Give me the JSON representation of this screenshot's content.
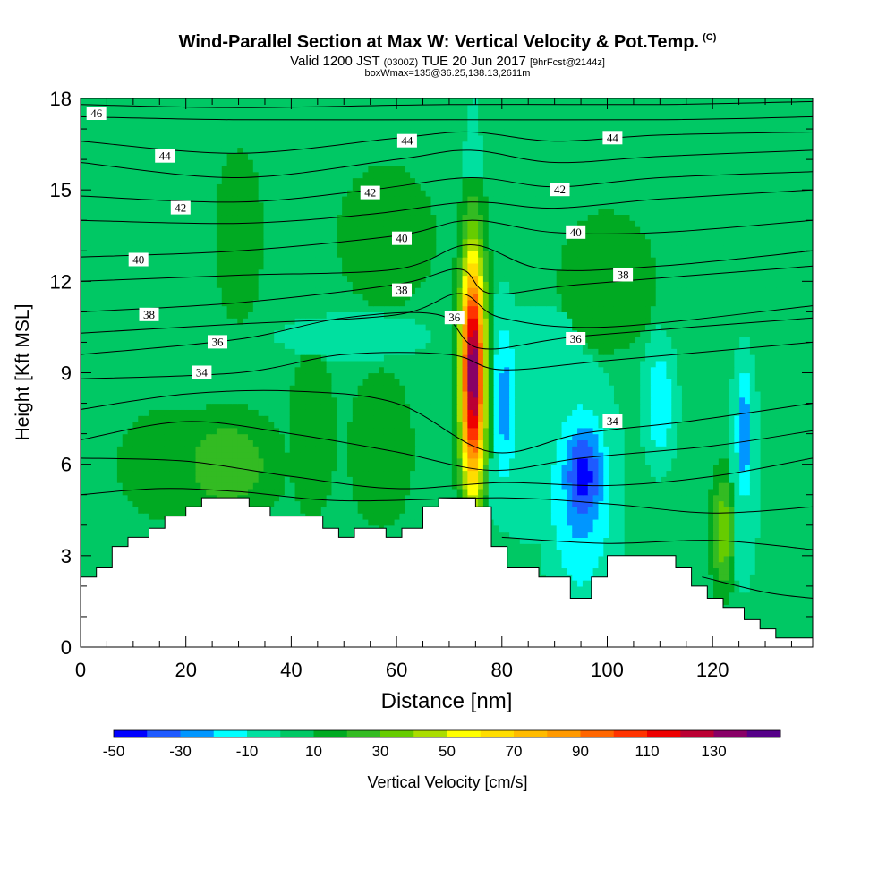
{
  "header": {
    "title": "Wind-Parallel Section at Max W: Vertical Velocity & Pot.Temp.",
    "copyright": "(C)",
    "valid_prefix": "Valid 1200 JST",
    "valid_z": "(0300Z)",
    "valid_date": "TUE 20 Jun 2017",
    "forecast_note": "[9hrFcst@2144z]",
    "box_info": "boxWmax=135@36.25,138.13,2611m"
  },
  "chart_data": {
    "type": "heatmap",
    "xlabel": "Distance [nm]",
    "ylabel": "Height [Kft MSL]",
    "xlim": [
      0,
      139
    ],
    "ylim": [
      0,
      18
    ],
    "x_ticks": [
      0,
      20,
      40,
      60,
      80,
      100,
      120
    ],
    "y_ticks": [
      0,
      3,
      6,
      9,
      12,
      15,
      18
    ],
    "grid": false,
    "colorbar": {
      "label": "Vertical Velocity [cm/s]",
      "levels": [
        -50,
        -40,
        -30,
        -20,
        -10,
        0,
        10,
        20,
        30,
        40,
        50,
        60,
        70,
        80,
        90,
        100,
        110,
        120,
        130,
        140
      ],
      "tick_labels": [
        "-50",
        "-30",
        "-10",
        "10",
        "30",
        "50",
        "70",
        "90",
        "110",
        "130"
      ],
      "tick_values": [
        -50,
        -30,
        -10,
        10,
        30,
        50,
        70,
        90,
        110,
        130
      ],
      "colors": [
        "#0000ff",
        "#1e5aff",
        "#0096ff",
        "#00ffff",
        "#00e0a0",
        "#00c864",
        "#00aa22",
        "#33bb22",
        "#66cc00",
        "#aadd00",
        "#ffff00",
        "#ffdd00",
        "#ffbb00",
        "#ff9900",
        "#ff6600",
        "#ff3300",
        "#ee0000",
        "#bb0033",
        "#880066",
        "#550088"
      ]
    },
    "background_w": 5,
    "velocity_features": [
      {
        "x": 74.5,
        "y": 9.0,
        "rx": 2.3,
        "ry": 3.9,
        "w": 135
      },
      {
        "x": 74.5,
        "y": 11.6,
        "rx": 1.3,
        "ry": 1.4,
        "w": 60
      },
      {
        "x": 95.5,
        "y": 5.6,
        "rx": 4.5,
        "ry": 2.0,
        "w": -50
      },
      {
        "x": 95.0,
        "y": 5.0,
        "rx": 6.5,
        "ry": 3.5,
        "w": -30
      },
      {
        "x": 80.5,
        "y": 8.0,
        "rx": 2.5,
        "ry": 3.0,
        "w": -30
      },
      {
        "x": 88.0,
        "y": 6.5,
        "rx": 14.0,
        "ry": 3.0,
        "w": -15
      },
      {
        "x": 85.0,
        "y": 10.0,
        "rx": 13.0,
        "ry": 1.5,
        "w": -10
      },
      {
        "x": 110.0,
        "y": 8.0,
        "rx": 3.0,
        "ry": 2.0,
        "w": -25
      },
      {
        "x": 126.0,
        "y": 7.0,
        "rx": 1.6,
        "ry": 2.3,
        "w": -35
      },
      {
        "x": 126.0,
        "y": 6.0,
        "rx": 3.0,
        "ry": 4.0,
        "w": -15
      },
      {
        "x": 52.0,
        "y": 10.2,
        "rx": 18.0,
        "ry": 0.9,
        "w": -10
      },
      {
        "x": 74.5,
        "y": 15.5,
        "rx": 2.0,
        "ry": 3.0,
        "w": -10
      },
      {
        "x": 28.0,
        "y": 6.0,
        "rx": 9.0,
        "ry": 1.6,
        "w": 25
      },
      {
        "x": 57.0,
        "y": 6.5,
        "rx": 6.0,
        "ry": 2.5,
        "w": 15
      },
      {
        "x": 122.0,
        "y": 3.8,
        "rx": 2.0,
        "ry": 1.8,
        "w": 35
      },
      {
        "x": 18.0,
        "y": 6.0,
        "rx": 12.0,
        "ry": 2.0,
        "w": 12
      },
      {
        "x": 44.0,
        "y": 7.0,
        "rx": 5.0,
        "ry": 3.0,
        "w": 12
      },
      {
        "x": 58.0,
        "y": 13.5,
        "rx": 10.0,
        "ry": 2.5,
        "w": 12
      },
      {
        "x": 30.0,
        "y": 13.5,
        "rx": 5.0,
        "ry": 3.0,
        "w": 12
      },
      {
        "x": 100.0,
        "y": 12.0,
        "rx": 10.0,
        "ry": 2.5,
        "w": 12
      }
    ],
    "terrain": [
      [
        0,
        2.3
      ],
      [
        3,
        2.3
      ],
      [
        3,
        2.6
      ],
      [
        6,
        2.6
      ],
      [
        6,
        3.3
      ],
      [
        9,
        3.3
      ],
      [
        9,
        3.6
      ],
      [
        13,
        3.6
      ],
      [
        13,
        3.9
      ],
      [
        16,
        3.9
      ],
      [
        16,
        4.3
      ],
      [
        20,
        4.3
      ],
      [
        20,
        4.6
      ],
      [
        23,
        4.6
      ],
      [
        23,
        4.9
      ],
      [
        32,
        4.9
      ],
      [
        32,
        4.6
      ],
      [
        36,
        4.6
      ],
      [
        36,
        4.3
      ],
      [
        46,
        4.3
      ],
      [
        46,
        3.9
      ],
      [
        49,
        3.9
      ],
      [
        49,
        3.6
      ],
      [
        52,
        3.6
      ],
      [
        52,
        3.9
      ],
      [
        58,
        3.9
      ],
      [
        58,
        3.6
      ],
      [
        61,
        3.6
      ],
      [
        61,
        3.9
      ],
      [
        65,
        3.9
      ],
      [
        65,
        4.6
      ],
      [
        68,
        4.6
      ],
      [
        68,
        4.9
      ],
      [
        75,
        4.9
      ],
      [
        75,
        4.6
      ],
      [
        78,
        4.6
      ],
      [
        78,
        3.3
      ],
      [
        81,
        3.3
      ],
      [
        81,
        2.6
      ],
      [
        87,
        2.6
      ],
      [
        87,
        2.3
      ],
      [
        93,
        2.3
      ],
      [
        93,
        1.6
      ],
      [
        97,
        1.6
      ],
      [
        97,
        2.3
      ],
      [
        100,
        2.3
      ],
      [
        100,
        3.0
      ],
      [
        113,
        3.0
      ],
      [
        113,
        2.6
      ],
      [
        116,
        2.6
      ],
      [
        116,
        2.0
      ],
      [
        119,
        2.0
      ],
      [
        119,
        1.6
      ],
      [
        122,
        1.6
      ],
      [
        122,
        1.3
      ],
      [
        126,
        1.3
      ],
      [
        126,
        0.9
      ],
      [
        129,
        0.9
      ],
      [
        129,
        0.6
      ],
      [
        132,
        0.6
      ],
      [
        132,
        0.3
      ],
      [
        139,
        0.3
      ]
    ],
    "isentropes": [
      {
        "level": 46,
        "label": "46",
        "points": [
          [
            0,
            17.8
          ],
          [
            30,
            17.7
          ],
          [
            70,
            17.8
          ],
          [
            110,
            17.8
          ],
          [
            139,
            17.9
          ]
        ]
      },
      {
        "level": 45,
        "label": "",
        "points": [
          [
            0,
            17.4
          ],
          [
            30,
            17.3
          ],
          [
            70,
            17.3
          ],
          [
            110,
            17.3
          ],
          [
            139,
            17.4
          ]
        ]
      },
      {
        "level": 44,
        "label": "44",
        "points": [
          [
            0,
            16.6
          ],
          [
            30,
            16.2
          ],
          [
            60,
            16.7
          ],
          [
            74,
            16.9
          ],
          [
            90,
            16.6
          ],
          [
            110,
            16.8
          ],
          [
            139,
            16.9
          ]
        ]
      },
      {
        "level": 43,
        "label": "",
        "points": [
          [
            0,
            15.9
          ],
          [
            30,
            15.4
          ],
          [
            60,
            16.0
          ],
          [
            74,
            16.3
          ],
          [
            90,
            15.9
          ],
          [
            110,
            16.1
          ],
          [
            139,
            16.3
          ]
        ]
      },
      {
        "level": 42,
        "label": "42",
        "points": [
          [
            0,
            14.8
          ],
          [
            30,
            14.6
          ],
          [
            55,
            15.0
          ],
          [
            74,
            15.4
          ],
          [
            90,
            15.1
          ],
          [
            110,
            15.4
          ],
          [
            139,
            15.6
          ]
        ]
      },
      {
        "level": 41,
        "label": "",
        "points": [
          [
            0,
            14.0
          ],
          [
            30,
            13.9
          ],
          [
            55,
            14.2
          ],
          [
            74,
            14.6
          ],
          [
            90,
            14.4
          ],
          [
            110,
            14.7
          ],
          [
            139,
            15.0
          ]
        ]
      },
      {
        "level": 40,
        "label": "40",
        "points": [
          [
            0,
            12.8
          ],
          [
            30,
            13.0
          ],
          [
            60,
            13.5
          ],
          [
            74,
            14.0
          ],
          [
            90,
            13.6
          ],
          [
            110,
            13.6
          ],
          [
            139,
            14.0
          ]
        ]
      },
      {
        "level": 39,
        "label": "",
        "points": [
          [
            0,
            12.0
          ],
          [
            30,
            12.2
          ],
          [
            60,
            12.4
          ],
          [
            74,
            13.2
          ],
          [
            88,
            12.4
          ],
          [
            110,
            12.5
          ],
          [
            139,
            13.0
          ]
        ]
      },
      {
        "level": 38,
        "label": "38",
        "points": [
          [
            0,
            11.0
          ],
          [
            30,
            11.3
          ],
          [
            60,
            11.9
          ],
          [
            72,
            12.4
          ],
          [
            78,
            11.6
          ],
          [
            95,
            11.9
          ],
          [
            139,
            12.5
          ]
        ]
      },
      {
        "level": 37,
        "label": "",
        "points": [
          [
            0,
            10.3
          ],
          [
            30,
            10.6
          ],
          [
            60,
            10.9
          ],
          [
            72,
            11.6
          ],
          [
            80,
            10.8
          ],
          [
            100,
            10.5
          ],
          [
            139,
            11.2
          ]
        ]
      },
      {
        "level": 36,
        "label": "36",
        "points": [
          [
            0,
            9.6
          ],
          [
            30,
            10.1
          ],
          [
            50,
            10.8
          ],
          [
            68,
            10.9
          ],
          [
            76,
            9.8
          ],
          [
            95,
            10.2
          ],
          [
            139,
            10.8
          ]
        ]
      },
      {
        "level": 35,
        "label": "",
        "points": [
          [
            0,
            8.8
          ],
          [
            30,
            9.0
          ],
          [
            50,
            9.6
          ],
          [
            70,
            9.6
          ],
          [
            80,
            9.1
          ],
          [
            100,
            9.4
          ],
          [
            139,
            10.0
          ]
        ]
      },
      {
        "level": 34,
        "label": "34",
        "points": [
          [
            0,
            7.8
          ],
          [
            20,
            8.3
          ],
          [
            40,
            8.4
          ],
          [
            60,
            8.0
          ],
          [
            78,
            6.4
          ],
          [
            95,
            7.0
          ],
          [
            115,
            7.4
          ],
          [
            139,
            8.0
          ]
        ]
      },
      {
        "level": 33,
        "label": "",
        "points": [
          [
            0,
            6.8
          ],
          [
            20,
            7.4
          ],
          [
            40,
            7.0
          ],
          [
            60,
            6.4
          ],
          [
            78,
            5.8
          ],
          [
            95,
            6.2
          ],
          [
            120,
            6.6
          ],
          [
            139,
            7.1
          ]
        ]
      },
      {
        "level": 32,
        "label": "",
        "points": [
          [
            0,
            6.2
          ],
          [
            20,
            6.1
          ],
          [
            40,
            5.6
          ],
          [
            60,
            5.2
          ],
          [
            80,
            5.4
          ],
          [
            100,
            5.3
          ],
          [
            120,
            5.6
          ],
          [
            139,
            6.2
          ]
        ]
      },
      {
        "level": 31,
        "label": "",
        "points": [
          [
            0,
            5.0
          ],
          [
            15,
            5.2
          ],
          [
            30,
            5.1
          ],
          [
            50,
            4.8
          ],
          [
            80,
            4.9
          ],
          [
            100,
            4.7
          ],
          [
            120,
            4.4
          ],
          [
            139,
            4.6
          ]
        ]
      },
      {
        "level": 30,
        "label": "",
        "points": [
          [
            80,
            3.6
          ],
          [
            100,
            3.4
          ],
          [
            120,
            3.5
          ],
          [
            139,
            3.2
          ]
        ]
      },
      {
        "level": 29,
        "label": "",
        "points": [
          [
            118,
            2.3
          ],
          [
            130,
            1.8
          ],
          [
            139,
            1.6
          ]
        ]
      }
    ],
    "isentrope_labels": [
      {
        "text": "46",
        "x": 3,
        "y": 17.5
      },
      {
        "text": "44",
        "x": 16,
        "y": 16.1
      },
      {
        "text": "44",
        "x": 62,
        "y": 16.6
      },
      {
        "text": "44",
        "x": 101,
        "y": 16.7
      },
      {
        "text": "42",
        "x": 19,
        "y": 14.4
      },
      {
        "text": "42",
        "x": 55,
        "y": 14.9
      },
      {
        "text": "42",
        "x": 91,
        "y": 15.0
      },
      {
        "text": "40",
        "x": 11,
        "y": 12.7
      },
      {
        "text": "40",
        "x": 61,
        "y": 13.4
      },
      {
        "text": "40",
        "x": 94,
        "y": 13.6
      },
      {
        "text": "38",
        "x": 13,
        "y": 10.9
      },
      {
        "text": "38",
        "x": 61,
        "y": 11.7
      },
      {
        "text": "38",
        "x": 103,
        "y": 12.2
      },
      {
        "text": "36",
        "x": 26,
        "y": 10.0
      },
      {
        "text": "36",
        "x": 71,
        "y": 10.8
      },
      {
        "text": "36",
        "x": 94,
        "y": 10.1
      },
      {
        "text": "34",
        "x": 23,
        "y": 9.0
      },
      {
        "text": "34",
        "x": 101,
        "y": 7.4
      }
    ]
  }
}
